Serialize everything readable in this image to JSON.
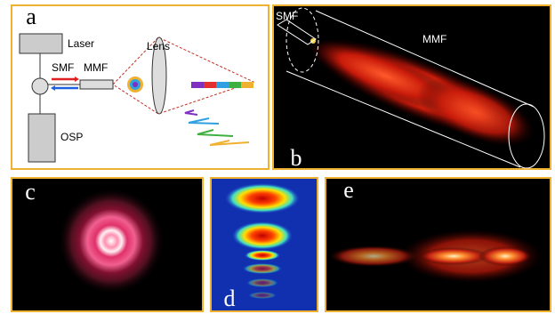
{
  "panels": {
    "a": {
      "label": "a",
      "laser": "Laser",
      "smf": "SMF",
      "mmf": "MMF",
      "lens": "Lens",
      "osp": "OSP"
    },
    "b": {
      "label": "b",
      "smf": "SMF",
      "mmf": "MMF"
    },
    "c": {
      "label": "c"
    },
    "d": {
      "label": "d"
    },
    "e": {
      "label": "e"
    }
  }
}
